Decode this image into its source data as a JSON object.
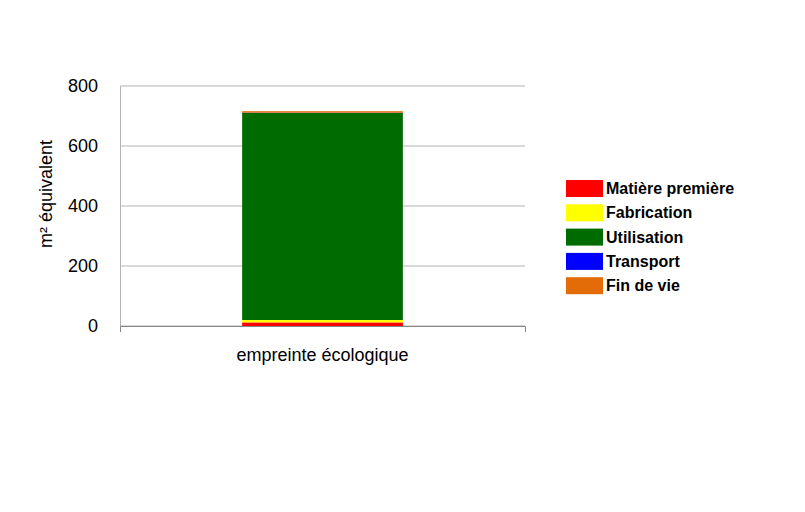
{
  "chart_data": {
    "type": "bar",
    "stacked": true,
    "categories": [
      "empreinte écologique"
    ],
    "series": [
      {
        "name": "Matière première",
        "color": "#ff0000",
        "values": [
          12
        ]
      },
      {
        "name": "Fabrication",
        "color": "#ffff00",
        "values": [
          8
        ]
      },
      {
        "name": "Utilisation",
        "color": "#006b00",
        "values": [
          690
        ]
      },
      {
        "name": "Transport",
        "color": "#0000ff",
        "values": [
          1
        ]
      },
      {
        "name": "Fin de vie",
        "color": "#e36c09",
        "values": [
          5
        ]
      }
    ],
    "ylabel": "m² équivalent",
    "ylim": [
      0,
      800
    ],
    "yticks": [
      0,
      200,
      400,
      600,
      800
    ],
    "grid": true,
    "legend": "right"
  }
}
